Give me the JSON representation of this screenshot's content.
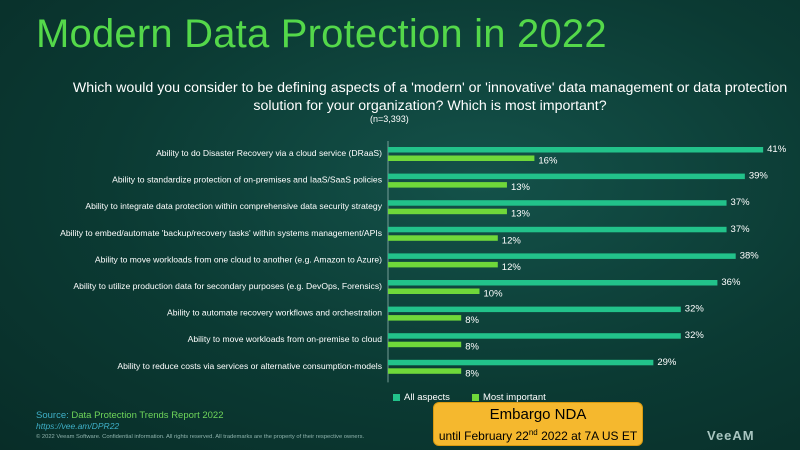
{
  "title": "Modern Data Protection in 2022",
  "question": "Which would you consider to be defining aspects of a 'modern' or 'innovative' data management or data protection solution for your organization?  Which is most important?",
  "sample": "(n=3,393)",
  "colors": {
    "all": "#22c28a",
    "most": "#6fd83a",
    "title": "#54d84a"
  },
  "chart_data": {
    "type": "bar",
    "orientation": "horizontal",
    "categories": [
      "Ability to do Disaster Recovery via a cloud service (DRaaS)",
      "Ability to standardize protection of on-premises and IaaS/SaaS policies",
      "Ability to integrate data protection within comprehensive data security strategy",
      "Ability to embed/automate 'backup/recovery tasks' within systems management/APIs",
      "Ability to move workloads from one cloud to another (e.g. Amazon to Azure)",
      "Ability to utilize production data for secondary purposes (e.g. DevOps, Forensics)",
      "Ability to automate recovery workflows and orchestration",
      "Ability to move workloads from on-premise to cloud",
      "Ability to reduce costs via services or alternative consumption-models"
    ],
    "series": [
      {
        "name": "All aspects",
        "values": [
          41,
          39,
          37,
          37,
          38,
          36,
          32,
          32,
          29
        ]
      },
      {
        "name": "Most important",
        "values": [
          16,
          13,
          13,
          12,
          12,
          10,
          8,
          8,
          8
        ]
      }
    ],
    "value_suffix": "%",
    "xlim": [
      0,
      45
    ],
    "legend": "bottom",
    "grid": false
  },
  "footer": {
    "source_label": "Source: ",
    "source_title": "Data Protection Trends Report 2022",
    "source_url": "https://vee.am/DPR22",
    "copyright": "© 2022 Veeam Software. Confidential information. All rights reserved. All trademarks are the property of their respective owners.",
    "embargo_line1": "Embargo NDA",
    "embargo_line2_pre": "until February 22",
    "embargo_sup": "nd",
    "embargo_line2_post": " 2022 at 7A US ET",
    "logo": "VeeAM"
  }
}
